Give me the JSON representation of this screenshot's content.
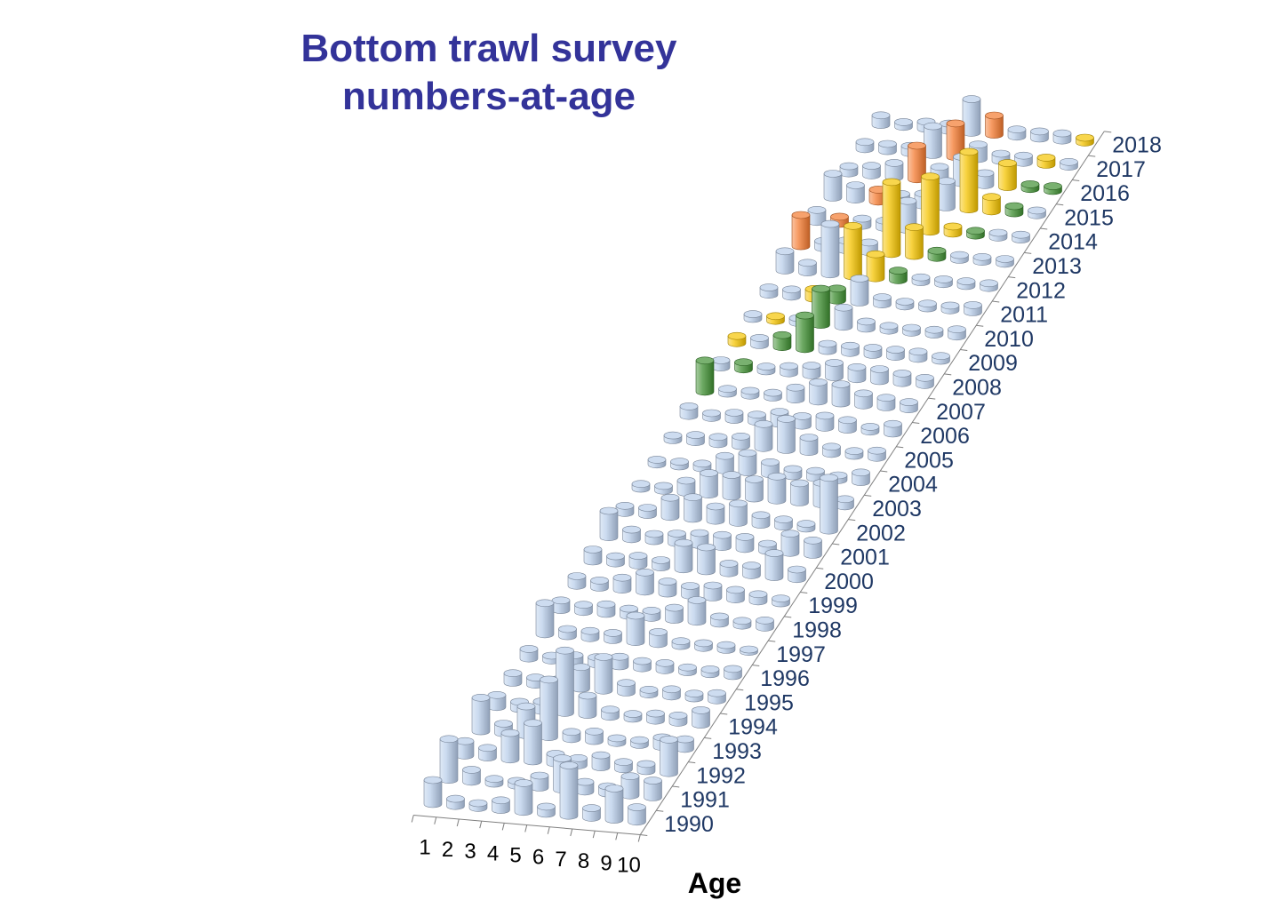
{
  "title": {
    "line1": "Bottom trawl survey",
    "line2": "numbers-at-age"
  },
  "chart_data": {
    "type": "bar3d",
    "title": "Bottom trawl survey numbers-at-age",
    "xlabel": "Age",
    "ylabel": "",
    "ages": [
      "1",
      "2",
      "3",
      "4",
      "5",
      "6",
      "7",
      "8",
      "9",
      "10"
    ],
    "years": [
      "1990",
      "1991",
      "1992",
      "1993",
      "1994",
      "1995",
      "1996",
      "1997",
      "1998",
      "1999",
      "2000",
      "2001",
      "2002",
      "2003",
      "2004",
      "2005",
      "2006",
      "2007",
      "2008",
      "2009",
      "2010",
      "2011",
      "2012",
      "2013",
      "2014",
      "2015",
      "2016",
      "2017",
      "2018"
    ],
    "values": [
      [
        1,
        0.3,
        0.2,
        0.4,
        1.2,
        0.3,
        2.1,
        0.4,
        1.3,
        0.6
      ],
      [
        1.7,
        0.5,
        0.2,
        0.2,
        0.5,
        1.3,
        0.4,
        0.3,
        0.8,
        0.7
      ],
      [
        0.6,
        0.4,
        1.1,
        1.6,
        0.4,
        0.3,
        0.5,
        0.3,
        0.3,
        1.4
      ],
      [
        1.4,
        0.4,
        1.2,
        2.4,
        0.3,
        0.4,
        0.2,
        0.2,
        0.4,
        0.4
      ],
      [
        0.5,
        0.3,
        0.4,
        2.6,
        0.8,
        0.3,
        0.2,
        0.3,
        0.3,
        0.6
      ],
      [
        0.4,
        0.3,
        0.3,
        0.9,
        1.4,
        0.4,
        0.2,
        0.3,
        0.2,
        0.3
      ],
      [
        0.4,
        0.2,
        0.3,
        0.3,
        0.4,
        0.3,
        0.3,
        0.2,
        0.2,
        0.3
      ],
      [
        1.3,
        0.3,
        0.3,
        0.3,
        1.1,
        0.5,
        0.2,
        0.2,
        0.2,
        0.1
      ],
      [
        0.4,
        0.3,
        0.4,
        0.3,
        0.3,
        0.5,
        0.9,
        0.3,
        0.2,
        0.3
      ],
      [
        0.4,
        0.3,
        0.5,
        0.8,
        0.5,
        0.4,
        0.5,
        0.4,
        0.3,
        0.2
      ],
      [
        0.5,
        0.3,
        0.4,
        0.3,
        1.1,
        1,
        0.4,
        0.4,
        1,
        0.4
      ],
      [
        1.1,
        0.4,
        0.3,
        0.4,
        0.5,
        0.5,
        0.5,
        0.3,
        0.8,
        0.6
      ],
      [
        0.3,
        0.3,
        0.8,
        0.9,
        0.6,
        0.8,
        0.4,
        0.3,
        0.2,
        2.2
      ],
      [
        0.2,
        0.2,
        0.5,
        0.9,
        0.9,
        0.8,
        1,
        0.8,
        0.9,
        0.3
      ],
      [
        0.2,
        0.2,
        0.2,
        0.6,
        0.8,
        0.5,
        0.3,
        0.3,
        0.2,
        0.4
      ],
      [
        0.2,
        0.3,
        0.3,
        0.4,
        1,
        1.3,
        0.6,
        0.3,
        0.2,
        0.3
      ],
      [
        0.4,
        0.2,
        0.3,
        0.3,
        0.5,
        0.4,
        0.5,
        0.4,
        0.2,
        0.4
      ],
      [
        1.3,
        0.2,
        0.2,
        0.2,
        0.5,
        0.8,
        0.8,
        0.5,
        0.4,
        0.3
      ],
      [
        0.3,
        0.3,
        0.2,
        0.3,
        0.4,
        0.6,
        0.5,
        0.5,
        0.4,
        0.3
      ],
      [
        0.3,
        0.3,
        0.5,
        1.4,
        0.3,
        0.3,
        0.3,
        0.3,
        0.3,
        0.2
      ],
      [
        0.2,
        0.2,
        0.2,
        1.5,
        0.8,
        0.3,
        0.2,
        0.2,
        0.2,
        0.3
      ],
      [
        0.3,
        0.3,
        0.4,
        0.5,
        1,
        0.3,
        0.2,
        0.2,
        0.2,
        0.3
      ],
      [
        0.8,
        0.4,
        2.1,
        2.1,
        1,
        0.4,
        0.2,
        0.2,
        0.2,
        0.2
      ],
      [
        1.3,
        0.3,
        0.4,
        0.4,
        3,
        1.2,
        0.3,
        0.2,
        0.2,
        0.2
      ],
      [
        0.5,
        0.3,
        0.3,
        0.3,
        1.2,
        2.3,
        0.3,
        0.2,
        0.2,
        0.2
      ],
      [
        1,
        0.6,
        0.5,
        0.4,
        0.5,
        1.1,
        2.4,
        0.6,
        0.3,
        0.2
      ],
      [
        0.3,
        0.4,
        0.6,
        1.4,
        0.6,
        1.1,
        0.5,
        1,
        0.2,
        0.2
      ],
      [
        0.3,
        0.3,
        0.3,
        1.2,
        1.4,
        0.6,
        0.3,
        0.3,
        0.3,
        0.2
      ],
      [
        0.4,
        0.2,
        0.3,
        0.3,
        1.4,
        0.8,
        0.3,
        0.3,
        0.3,
        0.2
      ]
    ],
    "colors": [
      [
        0,
        0,
        0,
        0,
        0,
        0,
        0,
        0,
        0,
        0
      ],
      [
        0,
        0,
        0,
        0,
        0,
        0,
        0,
        0,
        0,
        0
      ],
      [
        0,
        0,
        0,
        0,
        0,
        0,
        0,
        0,
        0,
        0
      ],
      [
        0,
        0,
        0,
        0,
        0,
        0,
        0,
        0,
        0,
        0
      ],
      [
        0,
        0,
        0,
        0,
        0,
        0,
        0,
        0,
        0,
        0
      ],
      [
        0,
        0,
        0,
        0,
        0,
        0,
        0,
        0,
        0,
        0
      ],
      [
        0,
        0,
        0,
        0,
        0,
        0,
        0,
        0,
        0,
        0
      ],
      [
        0,
        0,
        0,
        0,
        0,
        0,
        0,
        0,
        0,
        0
      ],
      [
        0,
        0,
        0,
        0,
        0,
        0,
        0,
        0,
        0,
        0
      ],
      [
        0,
        0,
        0,
        0,
        0,
        0,
        0,
        0,
        0,
        0
      ],
      [
        0,
        0,
        0,
        0,
        0,
        0,
        0,
        0,
        0,
        0
      ],
      [
        0,
        0,
        0,
        0,
        0,
        0,
        0,
        0,
        0,
        0
      ],
      [
        0,
        0,
        0,
        0,
        0,
        0,
        0,
        0,
        0,
        0
      ],
      [
        0,
        0,
        0,
        0,
        0,
        0,
        0,
        0,
        0,
        0
      ],
      [
        0,
        0,
        0,
        0,
        0,
        0,
        0,
        0,
        0,
        0
      ],
      [
        0,
        0,
        0,
        0,
        0,
        0,
        0,
        0,
        0,
        0
      ],
      [
        0,
        0,
        0,
        0,
        0,
        0,
        0,
        0,
        0,
        0
      ],
      [
        2,
        0,
        0,
        0,
        0,
        0,
        0,
        0,
        0,
        0
      ],
      [
        0,
        2,
        0,
        0,
        0,
        0,
        0,
        0,
        0,
        0
      ],
      [
        3,
        0,
        2,
        2,
        0,
        0,
        0,
        0,
        0,
        0
      ],
      [
        0,
        3,
        0,
        2,
        0,
        0,
        0,
        0,
        0,
        0
      ],
      [
        0,
        0,
        3,
        2,
        0,
        0,
        0,
        0,
        0,
        0
      ],
      [
        0,
        0,
        0,
        3,
        3,
        2,
        0,
        0,
        0,
        0
      ],
      [
        1,
        0,
        0,
        0,
        3,
        3,
        2,
        0,
        0,
        0
      ],
      [
        0,
        1,
        0,
        0,
        0,
        3,
        3,
        2,
        0,
        0
      ],
      [
        0,
        0,
        1,
        0,
        0,
        0,
        3,
        3,
        2,
        0
      ],
      [
        0,
        0,
        0,
        1,
        0,
        0,
        0,
        3,
        2,
        2
      ],
      [
        0,
        0,
        0,
        0,
        1,
        0,
        0,
        0,
        3,
        0
      ],
      [
        0,
        0,
        0,
        0,
        0,
        1,
        0,
        0,
        0,
        3
      ]
    ],
    "legend": [],
    "grid": false
  },
  "palette": {
    "default": "#b8cdea",
    "orange": "#f47a2f",
    "green": "#3f8f32",
    "yellow": "#f5c400",
    "title_color": "#333399",
    "year_label_color": "#1f3864"
  }
}
